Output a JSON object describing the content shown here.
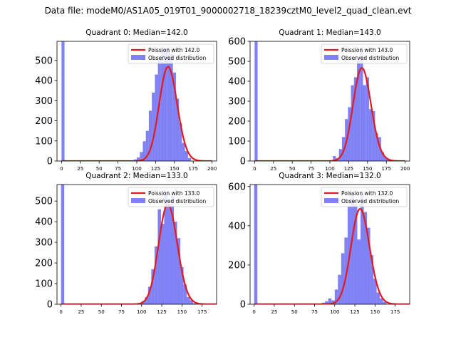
{
  "figure": {
    "title": "Data file: modeM0/AS1A05_019T01_9000002718_18239cztM0_level2_quad_clean.evt",
    "colors": {
      "poisson": "#e41a1c",
      "observed": "#6b6bf5",
      "observed_edge": "#5555ee"
    }
  },
  "chart_data": [
    {
      "type": "bar",
      "title": "Quadrant 0: Median=142.0",
      "xlabel": "",
      "ylabel": "",
      "xlim": [
        -6,
        206
      ],
      "ylim": [
        0,
        595
      ],
      "xticks": [
        0,
        25,
        50,
        75,
        100,
        125,
        150,
        175,
        200
      ],
      "yticks": [
        0,
        100,
        200,
        300,
        400,
        500
      ],
      "bin_width": 4,
      "observed": [
        [
          0,
          620
        ],
        [
          96,
          8
        ],
        [
          100,
          18
        ],
        [
          104,
          45
        ],
        [
          108,
          98
        ],
        [
          112,
          150
        ],
        [
          116,
          250
        ],
        [
          120,
          340
        ],
        [
          124,
          430
        ],
        [
          128,
          510
        ],
        [
          132,
          545
        ],
        [
          136,
          560
        ],
        [
          140,
          565
        ],
        [
          144,
          530
        ],
        [
          148,
          440
        ],
        [
          152,
          310
        ],
        [
          156,
          190
        ],
        [
          160,
          90
        ],
        [
          164,
          50
        ],
        [
          168,
          15
        ]
      ],
      "poisson_mean": 142.0,
      "poisson_scale": 4,
      "poisson_range": [
        0,
        200
      ],
      "legend": {
        "poisson_label": "Poission with 142.0",
        "observed_label": "Observed distribution",
        "position": "upper-right"
      }
    },
    {
      "type": "bar",
      "title": "Quadrant 1: Median=143.0",
      "xlabel": "",
      "ylabel": "",
      "xlim": [
        -6,
        206
      ],
      "ylim": [
        0,
        600
      ],
      "xticks": [
        0,
        25,
        50,
        75,
        100,
        125,
        150,
        175,
        200
      ],
      "yticks": [
        0,
        100,
        200,
        300,
        400,
        500,
        600
      ],
      "bin_width": 4,
      "observed": [
        [
          0,
          620
        ],
        [
          104,
          25
        ],
        [
          108,
          15
        ],
        [
          112,
          60
        ],
        [
          116,
          120
        ],
        [
          120,
          210
        ],
        [
          124,
          270
        ],
        [
          128,
          380
        ],
        [
          132,
          420
        ],
        [
          136,
          500
        ],
        [
          140,
          570
        ],
        [
          144,
          380
        ],
        [
          148,
          420
        ],
        [
          152,
          260
        ],
        [
          156,
          250
        ],
        [
          160,
          140
        ],
        [
          164,
          120
        ],
        [
          168,
          45
        ],
        [
          172,
          20
        ],
        [
          176,
          10
        ]
      ],
      "poisson_mean": 143.0,
      "poisson_scale": 4,
      "poisson_range": [
        0,
        200
      ],
      "legend": {
        "poisson_label": "Poission with 143.0",
        "observed_label": "Observed distribution",
        "position": "upper-right"
      }
    },
    {
      "type": "bar",
      "title": "Quadrant 2: Median=133.0",
      "xlabel": "",
      "ylabel": "",
      "xlim": [
        -5,
        193
      ],
      "ylim": [
        0,
        580
      ],
      "xticks": [
        0,
        25,
        50,
        75,
        100,
        125,
        150,
        175
      ],
      "yticks": [
        0,
        100,
        200,
        300,
        400,
        500
      ],
      "bin_width": 4,
      "observed": [
        [
          0,
          620
        ],
        [
          100,
          15
        ],
        [
          104,
          35
        ],
        [
          108,
          85
        ],
        [
          112,
          170
        ],
        [
          116,
          280
        ],
        [
          120,
          460
        ],
        [
          124,
          390
        ],
        [
          128,
          550
        ],
        [
          132,
          480
        ],
        [
          136,
          530
        ],
        [
          140,
          400
        ],
        [
          144,
          320
        ],
        [
          148,
          180
        ],
        [
          152,
          95
        ],
        [
          156,
          35
        ],
        [
          160,
          20
        ],
        [
          164,
          5
        ]
      ],
      "poisson_mean": 133.0,
      "poisson_scale": 4,
      "poisson_range": [
        0,
        200
      ],
      "legend": {
        "poisson_label": "Poission with 133.0",
        "observed_label": "Observed distribution",
        "position": "upper-right"
      }
    },
    {
      "type": "bar",
      "title": "Quadrant 3: Median=132.0",
      "xlabel": "",
      "ylabel": "",
      "xlim": [
        -5,
        193
      ],
      "ylim": [
        0,
        610
      ],
      "xticks": [
        0,
        25,
        50,
        75,
        100,
        125,
        150,
        175
      ],
      "yticks": [
        0,
        200,
        400,
        600
      ],
      "bin_width": 4,
      "observed": [
        [
          0,
          620
        ],
        [
          84,
          8
        ],
        [
          88,
          15
        ],
        [
          92,
          30
        ],
        [
          96,
          20
        ],
        [
          100,
          75
        ],
        [
          104,
          150
        ],
        [
          108,
          260
        ],
        [
          112,
          340
        ],
        [
          116,
          500
        ],
        [
          120,
          570
        ],
        [
          124,
          510
        ],
        [
          128,
          330
        ],
        [
          132,
          560
        ],
        [
          136,
          470
        ],
        [
          140,
          390
        ],
        [
          144,
          250
        ],
        [
          148,
          130
        ],
        [
          152,
          60
        ],
        [
          156,
          30
        ],
        [
          160,
          12
        ]
      ],
      "poisson_mean": 132.0,
      "poisson_scale": 4,
      "poisson_range": [
        0,
        200
      ],
      "legend": {
        "poisson_label": "Poission with 132.0",
        "observed_label": "Observed distribution",
        "position": "upper-right"
      }
    }
  ]
}
